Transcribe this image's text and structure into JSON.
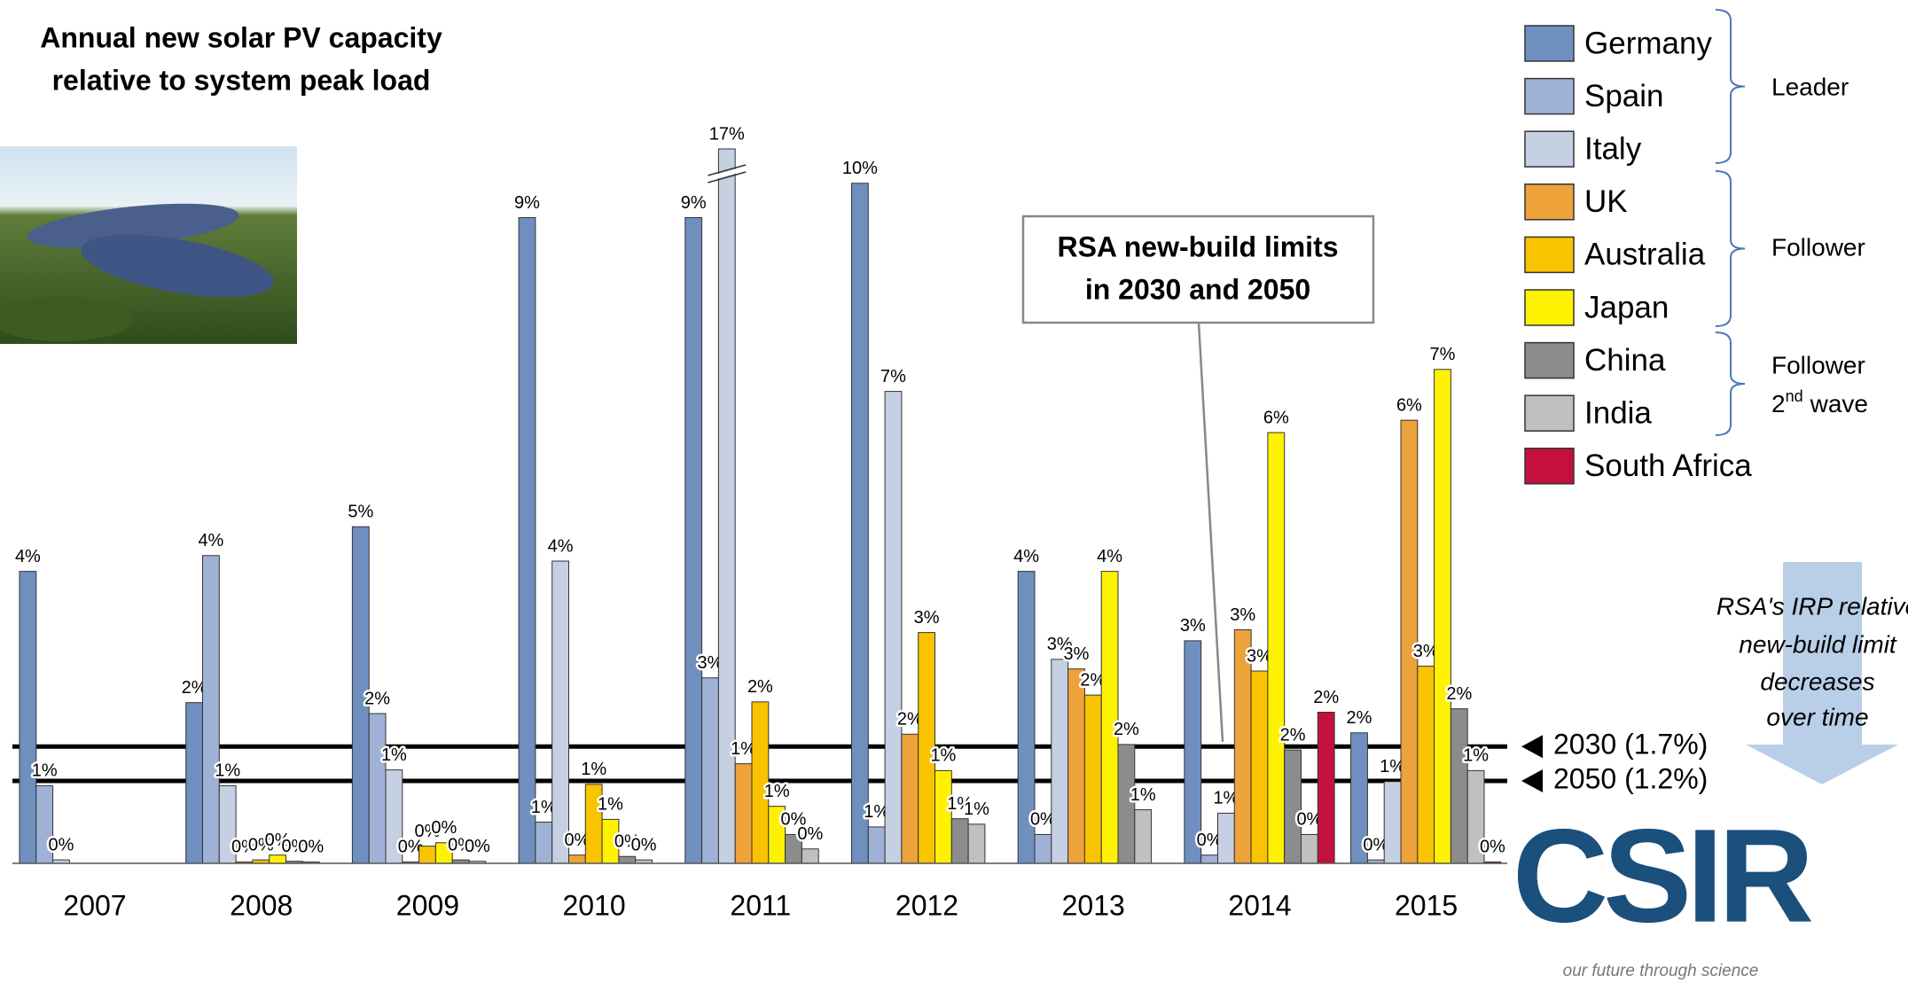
{
  "chart_data": {
    "type": "bar",
    "title_lines": [
      "Annual new solar PV capacity",
      "relative to system peak load"
    ],
    "categories": [
      "2007",
      "2008",
      "2009",
      "2010",
      "2011",
      "2012",
      "2013",
      "2014",
      "2015"
    ],
    "series": [
      {
        "name": "Germany",
        "color": "#6f8fbf",
        "values": [
          4.25,
          2.34,
          4.9,
          9.4,
          9.4,
          9.9,
          4.25,
          3.24,
          1.9
        ],
        "value_labels": [
          "4%",
          "2%",
          "5%",
          "9%",
          "9%",
          "10%",
          "4%",
          "3%",
          "2%"
        ]
      },
      {
        "name": "Spain",
        "color": "#9fb2d6",
        "values": [
          1.13,
          4.48,
          2.18,
          0.6,
          2.7,
          0.53,
          0.42,
          0.12,
          0.05
        ],
        "value_labels": [
          "1%",
          "4%",
          "2%",
          "1%",
          "3%",
          "1%",
          "0%",
          "0%",
          "0%"
        ]
      },
      {
        "name": "Italy",
        "color": "#c6d0e3",
        "values": [
          0.05,
          1.13,
          1.36,
          4.4,
          17,
          6.87,
          2.97,
          0.73,
          1.19
        ],
        "value_labels": [
          "0%",
          "1%",
          "1%",
          "4%",
          "17%",
          "7%",
          "3%",
          "1%",
          "1%"
        ]
      },
      {
        "name": "UK",
        "color": "#eda23a",
        "values": [
          null,
          0.02,
          0.02,
          0.12,
          1.45,
          1.88,
          2.83,
          3.4,
          6.45
        ],
        "value_labels": [
          null,
          "0%",
          "0%",
          "0%",
          "1%",
          "2%",
          "3%",
          "3%",
          "6%"
        ]
      },
      {
        "name": "Australia",
        "color": "#f9c300",
        "values": [
          null,
          0.05,
          0.25,
          1.15,
          2.35,
          3.36,
          2.45,
          2.8,
          2.87
        ],
        "value_labels": [
          null,
          "0%",
          "0%",
          "1%",
          "2%",
          "3%",
          "2%",
          "3%",
          "3%"
        ]
      },
      {
        "name": "Japan",
        "color": "#fff200",
        "values": [
          null,
          0.12,
          0.3,
          0.64,
          0.83,
          1.35,
          4.25,
          6.27,
          7.19
        ],
        "value_labels": [
          null,
          "0%",
          "0%",
          "1%",
          "1%",
          "1%",
          "4%",
          "6%",
          "7%"
        ]
      },
      {
        "name": "China",
        "color": "#8c8c8c",
        "values": [
          null,
          0.03,
          0.05,
          0.1,
          0.42,
          0.65,
          1.73,
          1.65,
          2.25
        ],
        "value_labels": [
          null,
          "0%",
          "0%",
          "0%",
          "0%",
          "1%",
          "2%",
          "2%",
          "2%"
        ]
      },
      {
        "name": "India",
        "color": "#c0c0c0",
        "values": [
          null,
          0.02,
          0.03,
          0.05,
          0.21,
          0.57,
          0.78,
          0.42,
          1.35
        ],
        "value_labels": [
          null,
          "0%",
          "0%",
          "0%",
          "0%",
          "1%",
          "1%",
          "0%",
          "1%"
        ]
      },
      {
        "name": "South Africa",
        "color": "#c4103c",
        "values": [
          null,
          null,
          null,
          null,
          null,
          null,
          null,
          2.2,
          0.02
        ],
        "value_labels": [
          null,
          null,
          null,
          null,
          null,
          null,
          null,
          "2%",
          "0%"
        ]
      }
    ],
    "ylim": [
      0,
      10.4
    ],
    "reference_lines": [
      {
        "value": 1.7,
        "label": "2030 (1.7%)"
      },
      {
        "value": 1.2,
        "label": "2050 (1.2%)"
      }
    ],
    "legend_groups": [
      [
        "Leader"
      ],
      [
        "Follower"
      ],
      [
        "Follower",
        "2",
        "nd",
        "wave"
      ]
    ],
    "callout": [
      "RSA new-build limits",
      "in 2030 and 2050"
    ],
    "note": [
      "RSA's IRP relative",
      "new-build limit",
      "decreases",
      "over time"
    ],
    "logo": {
      "text": "CSIR",
      "tagline": "our future through science"
    }
  }
}
